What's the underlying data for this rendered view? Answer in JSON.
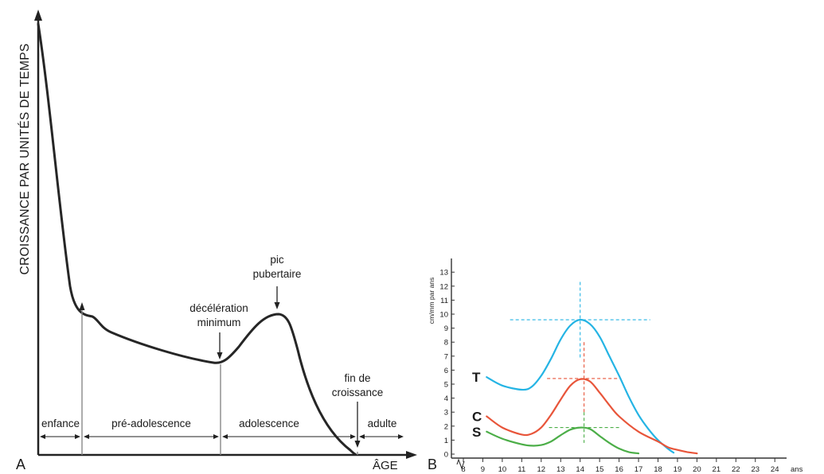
{
  "chart_data": [
    {
      "panel": "A",
      "type": "line",
      "title": "",
      "ylabel": "CROISSANCE PAR UNITÉS DE TEMPS",
      "xlabel": "ÂGE",
      "phases": [
        "enfance",
        "pré-adolescence",
        "adolescence",
        "adulte"
      ],
      "annotations": {
        "decel": [
          "décélération",
          "minimum"
        ],
        "pic": [
          "pic",
          "pubertaire"
        ],
        "fin": [
          "fin de",
          "croissance"
        ]
      }
    },
    {
      "panel": "B",
      "type": "line",
      "ylabel": "cm/mm par ans",
      "x_unit": "ans",
      "xlim": [
        8,
        24
      ],
      "ylim": [
        0,
        13
      ],
      "xticks": [
        8,
        9,
        10,
        11,
        12,
        13,
        14,
        15,
        16,
        17,
        18,
        19,
        20,
        21,
        22,
        23,
        24
      ],
      "yticks": [
        0,
        1,
        2,
        3,
        4,
        5,
        6,
        7,
        8,
        9,
        10,
        11,
        12,
        13
      ],
      "series": [
        {
          "name": "T",
          "color": "#25b4e4",
          "x": [
            9.2,
            10,
            11,
            11.5,
            12,
            12.5,
            13,
            13.5,
            14,
            14.5,
            15,
            15.5,
            16,
            16.5,
            17,
            17.5,
            18,
            18.5,
            18.8
          ],
          "y": [
            5.5,
            4.9,
            4.6,
            4.8,
            5.6,
            6.8,
            8.2,
            9.2,
            9.6,
            9.3,
            8.4,
            7.0,
            5.6,
            4.1,
            2.8,
            1.8,
            1.0,
            0.4,
            0.1
          ],
          "peak": {
            "x": 14,
            "y": 9.6
          }
        },
        {
          "name": "C",
          "color": "#e8553a",
          "x": [
            9.2,
            10,
            11,
            11.5,
            12,
            12.5,
            13,
            13.5,
            14,
            14.5,
            15,
            15.5,
            16,
            17,
            18,
            18.5,
            19,
            19.5,
            20
          ],
          "y": [
            2.7,
            1.9,
            1.4,
            1.45,
            1.9,
            2.8,
            3.9,
            4.9,
            5.35,
            5.2,
            4.4,
            3.5,
            2.7,
            1.6,
            0.9,
            0.5,
            0.3,
            0.15,
            0.05
          ],
          "peak": {
            "x": 14.2,
            "y": 5.4
          }
        },
        {
          "name": "S",
          "color": "#4cae48",
          "x": [
            9.2,
            10,
            11,
            11.5,
            12,
            12.5,
            13,
            13.5,
            14,
            14.5,
            15,
            15.5,
            16,
            16.5,
            17
          ],
          "y": [
            1.6,
            1.1,
            0.7,
            0.6,
            0.65,
            0.9,
            1.35,
            1.75,
            1.9,
            1.8,
            1.3,
            0.8,
            0.4,
            0.15,
            0.05
          ],
          "peak": {
            "x": 14.2,
            "y": 1.9
          }
        }
      ]
    }
  ],
  "panels": {
    "a": "A",
    "b": "B"
  }
}
